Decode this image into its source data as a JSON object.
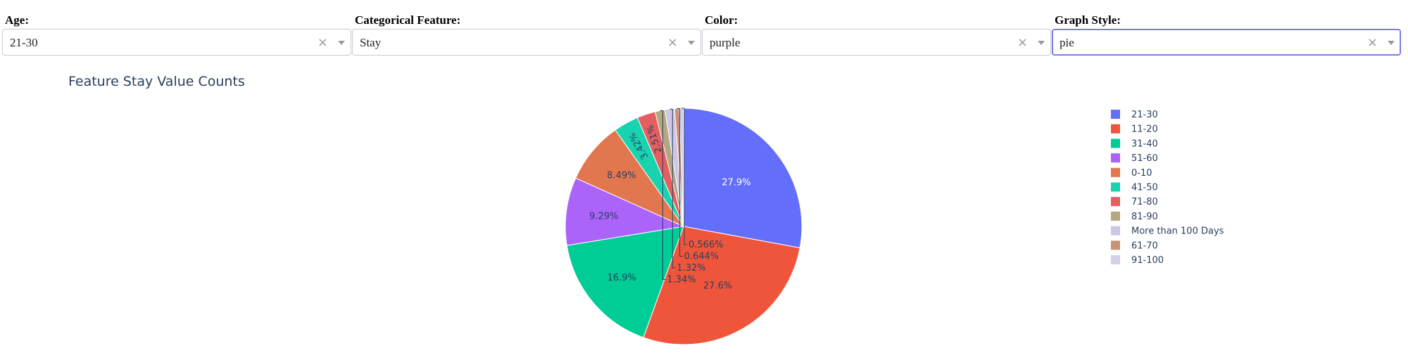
{
  "controls": [
    {
      "label": "Age:",
      "value": "21-30",
      "focused": false
    },
    {
      "label": "Categorical Feature:",
      "value": "Stay",
      "focused": false
    },
    {
      "label": "Color:",
      "value": "purple",
      "focused": false
    },
    {
      "label": "Graph Style:",
      "value": "pie",
      "focused": true
    }
  ],
  "icons": {
    "clear": "close-icon",
    "caret": "chevron-down-icon"
  },
  "chart_data": {
    "type": "pie",
    "title": "Feature Stay Value Counts",
    "legend_position": "right",
    "direction": "clockwise",
    "slices": [
      {
        "label": "21-30",
        "percent": 27.9,
        "text": "27.9%",
        "color": "#636efa"
      },
      {
        "label": "11-20",
        "percent": 27.6,
        "text": "27.6%",
        "color": "#ef553b"
      },
      {
        "label": "31-40",
        "percent": 16.9,
        "text": "16.9%",
        "color": "#00cc96"
      },
      {
        "label": "51-60",
        "percent": 9.29,
        "text": "9.29%",
        "color": "#ab63fa"
      },
      {
        "label": "0-10",
        "percent": 8.49,
        "text": "8.49%",
        "color": "#e2774f"
      },
      {
        "label": "41-50",
        "percent": 3.42,
        "text": "3.42%",
        "color": "#19d3af"
      },
      {
        "label": "71-80",
        "percent": 2.51,
        "text": "2.51%",
        "color": "#e45f5f"
      },
      {
        "label": "81-90",
        "percent": 1.34,
        "text": "1.34%",
        "color": "#b4a882"
      },
      {
        "label": "More than 100 Days",
        "percent": 1.32,
        "text": "1.32%",
        "color": "#cfc6e3"
      },
      {
        "label": "61-70",
        "percent": 0.644,
        "text": "0.644%",
        "color": "#c99274"
      },
      {
        "label": "91-100",
        "percent": 0.566,
        "text": "0.566%",
        "color": "#d5cfe8"
      }
    ]
  }
}
